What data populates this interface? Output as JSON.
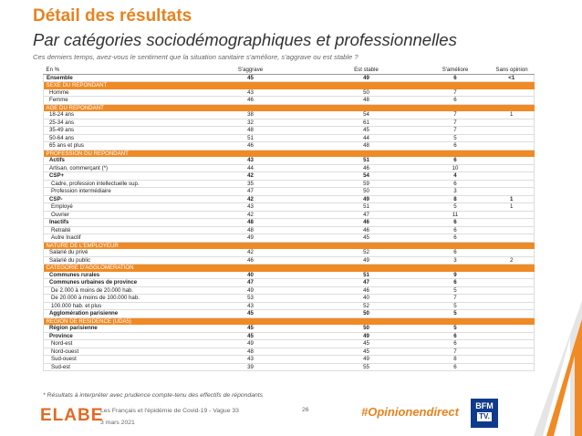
{
  "header": {
    "title": "Détail des résultats",
    "subtitle": "Par catégories sociodémographiques et professionnelles",
    "question": "Ces derniers temps, avez-vous le sentiment que la situation sanitaire s'améliore, s'aggrave ou est stable ?"
  },
  "table": {
    "columns": [
      "En %",
      "S'aggrave",
      "Est stable",
      "S'améliore",
      "Sans opinion"
    ],
    "rows": [
      {
        "type": "total",
        "label": "Ensemble",
        "values": [
          "45",
          "49",
          "6",
          "<1"
        ]
      },
      {
        "type": "section",
        "label": "SEXE DU REPONDANT"
      },
      {
        "type": "data",
        "indent": 1,
        "label": "Homme",
        "values": [
          "43",
          "50",
          "7",
          ""
        ]
      },
      {
        "type": "data",
        "indent": 1,
        "label": "Femme",
        "values": [
          "46",
          "48",
          "6",
          ""
        ]
      },
      {
        "type": "section",
        "label": "AGE DU REPONDANT"
      },
      {
        "type": "data",
        "indent": 1,
        "label": "18-24 ans",
        "values": [
          "38",
          "54",
          "7",
          "1"
        ]
      },
      {
        "type": "data",
        "indent": 1,
        "label": "25-34 ans",
        "values": [
          "32",
          "61",
          "7",
          ""
        ]
      },
      {
        "type": "data",
        "indent": 1,
        "label": "35-49 ans",
        "values": [
          "48",
          "45",
          "7",
          ""
        ]
      },
      {
        "type": "data",
        "indent": 1,
        "label": "50-64 ans",
        "values": [
          "51",
          "44",
          "5",
          ""
        ]
      },
      {
        "type": "data",
        "indent": 1,
        "label": "65 ans et plus",
        "values": [
          "46",
          "48",
          "6",
          ""
        ]
      },
      {
        "type": "section",
        "label": "PROFESSION DU REPONDANT"
      },
      {
        "type": "bold",
        "indent": 1,
        "label": "Actifs",
        "values": [
          "43",
          "51",
          "6",
          ""
        ]
      },
      {
        "type": "data",
        "indent": 1,
        "label": "Artisan, commerçant (*)",
        "values": [
          "44",
          "46",
          "10",
          ""
        ]
      },
      {
        "type": "bold",
        "indent": 1,
        "label": "CSP+",
        "values": [
          "42",
          "54",
          "4",
          ""
        ]
      },
      {
        "type": "data",
        "indent": 2,
        "label": "Cadre, profession intellectuelle sup.",
        "values": [
          "35",
          "59",
          "6",
          ""
        ]
      },
      {
        "type": "data",
        "indent": 2,
        "label": "Profession intermédiaire",
        "values": [
          "47",
          "50",
          "3",
          ""
        ]
      },
      {
        "type": "bold",
        "indent": 1,
        "label": "CSP-",
        "values": [
          "42",
          "49",
          "8",
          "1"
        ]
      },
      {
        "type": "data",
        "indent": 2,
        "label": "Employé",
        "values": [
          "43",
          "51",
          "5",
          "1"
        ]
      },
      {
        "type": "data",
        "indent": 2,
        "label": "Ouvrier",
        "values": [
          "42",
          "47",
          "11",
          ""
        ]
      },
      {
        "type": "bold",
        "indent": 1,
        "label": "Inactifs",
        "values": [
          "48",
          "46",
          "6",
          ""
        ]
      },
      {
        "type": "data",
        "indent": 2,
        "label": "Retraité",
        "values": [
          "48",
          "46",
          "6",
          ""
        ]
      },
      {
        "type": "data",
        "indent": 2,
        "label": "Autre Inactif",
        "values": [
          "49",
          "45",
          "6",
          ""
        ]
      },
      {
        "type": "section",
        "label": "NATURE DE L'EMPLOYEUR"
      },
      {
        "type": "data",
        "indent": 1,
        "label": "Salarié du privé",
        "values": [
          "42",
          "52",
          "6",
          ""
        ]
      },
      {
        "type": "data",
        "indent": 1,
        "label": "Salarié du public",
        "values": [
          "46",
          "49",
          "3",
          "2"
        ]
      },
      {
        "type": "section",
        "label": "CATEGORIE D'AGGLOMERATION"
      },
      {
        "type": "bold",
        "indent": 1,
        "label": "Communes rurales",
        "values": [
          "40",
          "51",
          "9",
          ""
        ]
      },
      {
        "type": "bold",
        "indent": 1,
        "label": "Communes urbaines de province",
        "values": [
          "47",
          "47",
          "6",
          ""
        ]
      },
      {
        "type": "data",
        "indent": 2,
        "label": "De 2.000 à moins de 20.000 hab.",
        "values": [
          "49",
          "46",
          "5",
          ""
        ]
      },
      {
        "type": "data",
        "indent": 2,
        "label": "De 20.000 à moins de 100.000 hab.",
        "values": [
          "53",
          "40",
          "7",
          ""
        ]
      },
      {
        "type": "data",
        "indent": 2,
        "label": "100.000 hab. et plus",
        "values": [
          "43",
          "52",
          "5",
          ""
        ]
      },
      {
        "type": "bold",
        "indent": 1,
        "label": "Agglomération parisienne",
        "values": [
          "45",
          "50",
          "5",
          ""
        ]
      },
      {
        "type": "section",
        "label": "REGION DE RESIDENCE (UDA5)"
      },
      {
        "type": "bold",
        "indent": 1,
        "label": "Région parisienne",
        "values": [
          "45",
          "50",
          "5",
          ""
        ]
      },
      {
        "type": "bold",
        "indent": 1,
        "label": "Province",
        "values": [
          "45",
          "49",
          "6",
          ""
        ]
      },
      {
        "type": "data",
        "indent": 2,
        "label": "Nord-est",
        "values": [
          "49",
          "45",
          "6",
          ""
        ]
      },
      {
        "type": "data",
        "indent": 2,
        "label": "Nord-ouest",
        "values": [
          "48",
          "45",
          "7",
          ""
        ]
      },
      {
        "type": "data",
        "indent": 2,
        "label": "Sud-ouest",
        "values": [
          "43",
          "49",
          "8",
          ""
        ]
      },
      {
        "type": "data",
        "indent": 2,
        "label": "Sud-est",
        "values": [
          "39",
          "55",
          "6",
          ""
        ]
      }
    ]
  },
  "footnote": "* Résultats à interpréter avec prudence compte-tenu des effectifs de répondants",
  "footer": {
    "logo": "ELABE",
    "source": "Les Français et l'épidémie de Covid-19 - Vague 33",
    "date": "3 mars 2021",
    "page": "26",
    "hashtag": "#Opinionendirect",
    "partner_logo_top": "BFM",
    "partner_logo_bottom": "TV."
  },
  "colors": {
    "accent": "#f08a24",
    "title": "#e8821e"
  }
}
